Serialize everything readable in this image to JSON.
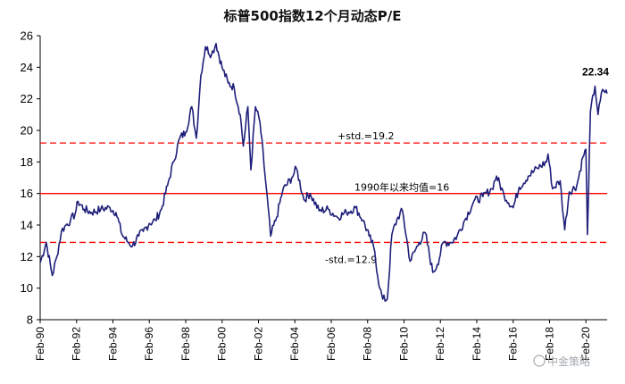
{
  "chart_data": {
    "type": "line",
    "title": "标普500指数12个月动态P/E",
    "xlabel": "",
    "ylabel": "",
    "ylim": [
      8,
      26
    ],
    "yticks": [
      8,
      10,
      12,
      14,
      16,
      18,
      20,
      22,
      24,
      26
    ],
    "xlim": [
      "1990-02",
      "2021-04"
    ],
    "xtick_labels": [
      "Feb-90",
      "Feb-92",
      "Feb-94",
      "Feb-96",
      "Feb-98",
      "Feb-00",
      "Feb-02",
      "Feb-04",
      "Feb-06",
      "Feb-08",
      "Feb-10",
      "Feb-12",
      "Feb-14",
      "Feb-16",
      "Feb-18",
      "Feb-20"
    ],
    "grid": false,
    "legend": "none",
    "colors": {
      "series": "#1f1f7a",
      "mean": "#ff0000",
      "std": "#ff0000"
    },
    "reference_lines": [
      {
        "value": 19.2,
        "label": "+std.=19.2",
        "style": "dashed"
      },
      {
        "value": 16,
        "label": "1990年以来均值=16",
        "style": "solid"
      },
      {
        "value": 12.9,
        "label": "-std.=12.9",
        "style": "dashed"
      }
    ],
    "last_value_label": "22.34",
    "series": [
      {
        "values": [
          [
            "1990-02",
            11.6
          ],
          [
            "1990-06",
            12.9
          ],
          [
            "1990-10",
            10.8
          ],
          [
            "1991-01",
            12.0
          ],
          [
            "1991-04",
            13.6
          ],
          [
            "1991-07",
            14.0
          ],
          [
            "1991-10",
            14.3
          ],
          [
            "1992-01",
            14.7
          ],
          [
            "1992-03",
            15.5
          ],
          [
            "1992-07",
            15.0
          ],
          [
            "1992-12",
            14.8
          ],
          [
            "1993-06",
            15.0
          ],
          [
            "1993-12",
            15.1
          ],
          [
            "1994-04",
            14.8
          ],
          [
            "1994-08",
            13.4
          ],
          [
            "1994-12",
            12.9
          ],
          [
            "1995-03",
            12.7
          ],
          [
            "1995-07",
            13.3
          ],
          [
            "1995-10",
            13.6
          ],
          [
            "1996-02",
            14.1
          ],
          [
            "1996-06",
            14.3
          ],
          [
            "1996-10",
            15.0
          ],
          [
            "1997-02",
            16.5
          ],
          [
            "1997-06",
            18.0
          ],
          [
            "1997-10",
            19.5
          ],
          [
            "1998-02",
            19.9
          ],
          [
            "1998-06",
            21.5
          ],
          [
            "1998-09",
            19.5
          ],
          [
            "1998-12",
            23.5
          ],
          [
            "1999-03",
            25.3
          ],
          [
            "1999-07",
            24.8
          ],
          [
            "1999-10",
            25.5
          ],
          [
            "2000-02",
            24.0
          ],
          [
            "2000-06",
            23.0
          ],
          [
            "2000-10",
            22.7
          ],
          [
            "2001-02",
            21.0
          ],
          [
            "2001-04",
            19.0
          ],
          [
            "2001-07",
            21.5
          ],
          [
            "2001-09",
            17.5
          ],
          [
            "2001-12",
            21.5
          ],
          [
            "2002-03",
            20.5
          ],
          [
            "2002-07",
            16.5
          ],
          [
            "2002-10",
            13.3
          ],
          [
            "2003-02",
            14.5
          ],
          [
            "2003-06",
            16.2
          ],
          [
            "2003-12",
            17.0
          ],
          [
            "2004-03",
            17.6
          ],
          [
            "2004-08",
            15.6
          ],
          [
            "2004-12",
            16.0
          ],
          [
            "2005-06",
            14.9
          ],
          [
            "2005-12",
            15.0
          ],
          [
            "2006-06",
            14.5
          ],
          [
            "2006-12",
            14.8
          ],
          [
            "2007-06",
            15.1
          ],
          [
            "2007-11",
            14.3
          ],
          [
            "2008-03",
            13.3
          ],
          [
            "2008-06",
            12.6
          ],
          [
            "2008-10",
            10.0
          ],
          [
            "2008-12",
            9.3
          ],
          [
            "2009-03",
            9.3
          ],
          [
            "2009-06",
            13.4
          ],
          [
            "2009-10",
            14.5
          ],
          [
            "2010-01",
            14.9
          ],
          [
            "2010-06",
            11.7
          ],
          [
            "2010-12",
            12.9
          ],
          [
            "2011-04",
            13.5
          ],
          [
            "2011-09",
            11.0
          ],
          [
            "2011-12",
            11.5
          ],
          [
            "2012-04",
            12.9
          ],
          [
            "2012-09",
            12.9
          ],
          [
            "2013-01",
            13.3
          ],
          [
            "2013-06",
            14.3
          ],
          [
            "2013-12",
            15.5
          ],
          [
            "2014-06",
            15.8
          ],
          [
            "2014-12",
            16.3
          ],
          [
            "2015-03",
            17.1
          ],
          [
            "2015-08",
            15.9
          ],
          [
            "2016-02",
            15.1
          ],
          [
            "2016-06",
            16.4
          ],
          [
            "2016-12",
            17.1
          ],
          [
            "2017-06",
            17.6
          ],
          [
            "2017-12",
            18.0
          ],
          [
            "2018-01",
            18.5
          ],
          [
            "2018-04",
            16.3
          ],
          [
            "2018-09",
            16.8
          ],
          [
            "2018-12",
            13.7
          ],
          [
            "2019-03",
            16.1
          ],
          [
            "2019-08",
            16.5
          ],
          [
            "2019-12",
            18.3
          ],
          [
            "2020-02",
            18.8
          ],
          [
            "2020-03",
            13.4
          ],
          [
            "2020-05",
            21.2
          ],
          [
            "2020-08",
            22.8
          ],
          [
            "2020-10",
            21.0
          ],
          [
            "2021-01",
            22.6
          ],
          [
            "2021-04",
            22.34
          ]
        ]
      }
    ]
  },
  "watermark": "中金策略"
}
